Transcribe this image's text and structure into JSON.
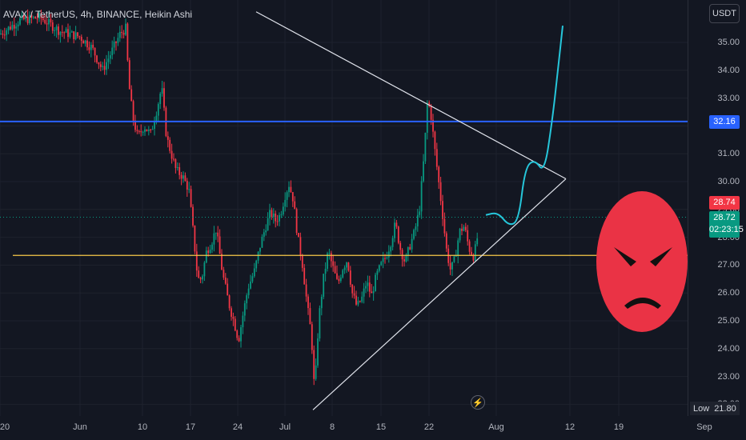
{
  "header": {
    "title": "AVAX / TetherUS, 4h, BINANCE, Heikin Ashi",
    "currency": "USDT"
  },
  "chart_data": {
    "type": "candlestick",
    "symbol": "AVAX / TetherUS",
    "interval": "4h",
    "exchange": "BINANCE",
    "style": "Heikin Ashi",
    "ylim": [
      21.5,
      36.0
    ],
    "y_ticks": [
      "35.00",
      "34.00",
      "33.00",
      "32.00",
      "31.00",
      "30.00",
      "29.00",
      "28.00",
      "27.00",
      "26.00",
      "25.00",
      "24.00",
      "23.00",
      "22.00"
    ],
    "x_ticks": [
      "20",
      "Jun",
      "10",
      "17",
      "24",
      "Jul",
      "8",
      "15",
      "22",
      "Aug",
      "12",
      "19",
      "Sep"
    ],
    "candle_colors": {
      "up": "#089981",
      "down": "#f23645"
    },
    "price_path": [
      [
        0,
        35.3
      ],
      [
        25,
        35.8
      ],
      [
        50,
        35.9
      ],
      [
        75,
        35.4
      ],
      [
        100,
        35.2
      ],
      [
        115,
        34.8
      ],
      [
        128,
        34.0
      ],
      [
        140,
        34.7
      ],
      [
        150,
        35.3
      ],
      [
        157,
        35.5
      ],
      [
        161,
        33.5
      ],
      [
        166,
        32.3
      ],
      [
        172,
        31.6
      ],
      [
        180,
        32.0
      ],
      [
        188,
        31.7
      ],
      [
        196,
        32.6
      ],
      [
        202,
        33.4
      ],
      [
        208,
        31.6
      ],
      [
        214,
        31.0
      ],
      [
        220,
        30.4
      ],
      [
        228,
        30.2
      ],
      [
        236,
        29.7
      ],
      [
        242,
        28.0
      ],
      [
        247,
        26.5
      ],
      [
        252,
        26.5
      ],
      [
        258,
        27.5
      ],
      [
        264,
        27.8
      ],
      [
        270,
        28.3
      ],
      [
        278,
        26.7
      ],
      [
        286,
        25.6
      ],
      [
        292,
        25.0
      ],
      [
        298,
        24.3
      ],
      [
        304,
        25.3
      ],
      [
        310,
        26.2
      ],
      [
        318,
        26.8
      ],
      [
        325,
        27.7
      ],
      [
        332,
        28.4
      ],
      [
        338,
        28.9
      ],
      [
        344,
        28.6
      ],
      [
        350,
        28.8
      ],
      [
        356,
        29.5
      ],
      [
        361,
        29.9
      ],
      [
        366,
        29.4
      ],
      [
        372,
        28.0
      ],
      [
        378,
        27.0
      ],
      [
        384,
        25.5
      ],
      [
        389,
        24.5
      ],
      [
        393,
        22.4
      ],
      [
        398,
        25.0
      ],
      [
        404,
        26.5
      ],
      [
        410,
        27.5
      ],
      [
        416,
        26.9
      ],
      [
        422,
        26.3
      ],
      [
        428,
        26.9
      ],
      [
        434,
        27.2
      ],
      [
        440,
        26.0
      ],
      [
        446,
        25.5
      ],
      [
        452,
        25.8
      ],
      [
        458,
        26.4
      ],
      [
        464,
        25.9
      ],
      [
        470,
        26.6
      ],
      [
        476,
        27.0
      ],
      [
        482,
        27.3
      ],
      [
        488,
        27.8
      ],
      [
        494,
        28.5
      ],
      [
        500,
        27.6
      ],
      [
        506,
        27.1
      ],
      [
        512,
        27.7
      ],
      [
        518,
        28.2
      ],
      [
        524,
        29.0
      ],
      [
        530,
        31.0
      ],
      [
        534,
        32.9
      ],
      [
        538,
        32.5
      ],
      [
        543,
        31.2
      ],
      [
        548,
        30.0
      ],
      [
        553,
        28.8
      ],
      [
        558,
        27.5
      ],
      [
        563,
        26.8
      ],
      [
        568,
        27.2
      ],
      [
        574,
        28.2
      ],
      [
        580,
        28.4
      ],
      [
        586,
        27.6
      ],
      [
        592,
        27.3
      ],
      [
        597,
        28.1
      ]
    ],
    "annotations": [
      {
        "type": "horizontal-line",
        "price": 32.16,
        "color": "#2962ff",
        "label": "32.16"
      },
      {
        "type": "horizontal-line",
        "price": 27.35,
        "color": "#f7c948"
      },
      {
        "type": "trendline",
        "from": {
          "bar_x": 320,
          "price": 36.1
        },
        "to": {
          "bar_x": 707,
          "price": 30.1
        },
        "color": "#e0e3eb"
      },
      {
        "type": "trendline",
        "from": {
          "bar_x": 391,
          "price": 21.8
        },
        "to": {
          "bar_x": 707,
          "price": 30.1
        },
        "color": "#e0e3eb"
      },
      {
        "type": "projection-path",
        "color": "#26c6da",
        "points": [
          [
            607,
            28.8
          ],
          [
            622,
            28.9
          ],
          [
            636,
            28.4
          ],
          [
            648,
            28.6
          ],
          [
            656,
            30.5
          ],
          [
            668,
            30.8
          ],
          [
            680,
            30.3
          ],
          [
            690,
            32.2
          ],
          [
            697,
            34.0
          ],
          [
            703,
            35.6
          ]
        ]
      }
    ],
    "current_price": {
      "value": "28.72",
      "countdown": "02:23:15",
      "color": "#089981"
    },
    "prev_price": {
      "value": "28.74",
      "color": "#f23645"
    },
    "low": {
      "label": "Low",
      "value": "21.80"
    },
    "emoji": "angry-face"
  }
}
